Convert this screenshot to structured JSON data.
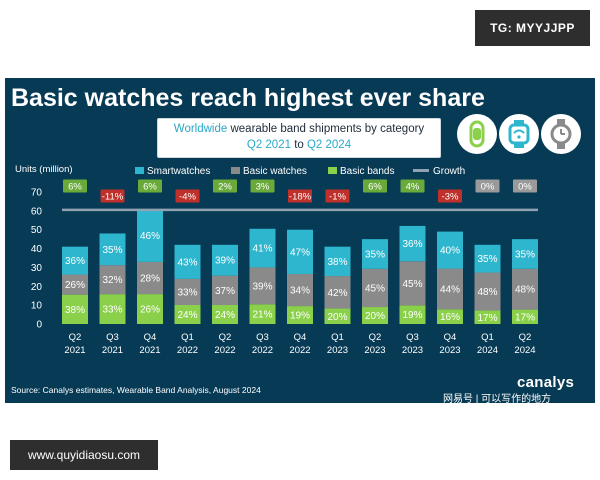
{
  "watermarks": {
    "top": "TG: MYYJJPP",
    "bottom": "www.quyidiaosu.com"
  },
  "header": {
    "title": "Basic watches reach highest ever share",
    "subtitle_line1_hl": "Worldwide",
    "subtitle_line1_rest": " wearable band shipments by category",
    "subtitle_line2_a": "Q2 2021",
    "subtitle_line2_b": " to ",
    "subtitle_line2_c": "Q2 2024"
  },
  "icons": [
    "fitness-band-icon",
    "smartwatch-wifi-icon",
    "basic-watch-icon"
  ],
  "footer": {
    "source": "Source: Canalys estimates, Wearable Band Analysis, August 2024",
    "brand": "canalys",
    "brand_cn": "网易号 | 可以写作的地方"
  },
  "colors": {
    "panel_bg": "#073a55",
    "smartwatches": "#2fb6cf",
    "basic_watches": "#8a8a8a",
    "basic_bands": "#8bd04a",
    "growth_line": "#8fa3b3",
    "growth_positive": "#6aaa3a",
    "growth_negative": "#c0302a",
    "growth_zero": "#9a9a9a"
  },
  "chart_data": {
    "type": "bar",
    "stacked": true,
    "ylabel": "Units (million)",
    "ylim": [
      0,
      70
    ],
    "yticks": [
      0,
      10,
      20,
      30,
      40,
      50,
      60,
      70
    ],
    "grid": false,
    "legend_position": "top",
    "categories": [
      [
        "Q2",
        "2021"
      ],
      [
        "Q3",
        "2021"
      ],
      [
        "Q4",
        "2021"
      ],
      [
        "Q1",
        "2022"
      ],
      [
        "Q2",
        "2022"
      ],
      [
        "Q3",
        "2022"
      ],
      [
        "Q4",
        "2022"
      ],
      [
        "Q1",
        "2023"
      ],
      [
        "Q2",
        "2023"
      ],
      [
        "Q3",
        "2023"
      ],
      [
        "Q4",
        "2023"
      ],
      [
        "Q1",
        "2024"
      ],
      [
        "Q2",
        "2024"
      ]
    ],
    "totals": [
      41,
      48,
      61,
      42,
      42,
      50,
      50,
      41,
      45,
      52,
      49,
      42,
      45
    ],
    "series": [
      {
        "name": "Basic bands",
        "key": "basic_bands",
        "shares": [
          "38%",
          "33%",
          "26%",
          "24%",
          "24%",
          "21%",
          "19%",
          "20%",
          "20%",
          "19%",
          "16%",
          "17%",
          "17%"
        ]
      },
      {
        "name": "Basic watches",
        "key": "basic_watches",
        "shares": [
          "26%",
          "32%",
          "28%",
          "33%",
          "37%",
          "39%",
          "34%",
          "42%",
          "45%",
          "45%",
          "44%",
          "48%",
          "48%"
        ]
      },
      {
        "name": "Smartwatches",
        "key": "smartwatches",
        "shares": [
          "36%",
          "35%",
          "46%",
          "43%",
          "39%",
          "41%",
          "47%",
          "38%",
          "35%",
          "36%",
          "40%",
          "35%",
          "35%"
        ]
      }
    ],
    "growth": {
      "name": "Growth",
      "labels": [
        "6%",
        "-11%",
        "6%",
        "-4%",
        "2%",
        "3%",
        "-18%",
        "-1%",
        "6%",
        "4%",
        "-3%",
        "0%",
        "0%"
      ],
      "values": [
        6,
        -11,
        6,
        -4,
        2,
        3,
        -18,
        -1,
        6,
        4,
        -3,
        0,
        0
      ]
    },
    "legend": [
      "Smartwatches",
      "Basic watches",
      "Basic bands",
      "Growth"
    ]
  }
}
